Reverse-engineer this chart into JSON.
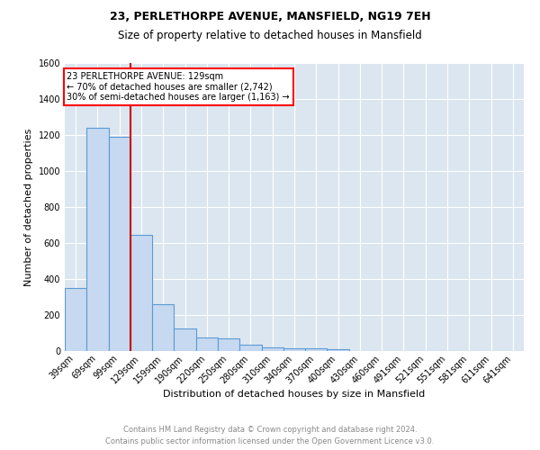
{
  "title": "23, PERLETHORPE AVENUE, MANSFIELD, NG19 7EH",
  "subtitle": "Size of property relative to detached houses in Mansfield",
  "xlabel": "Distribution of detached houses by size in Mansfield",
  "ylabel": "Number of detached properties",
  "footer_line1": "Contains HM Land Registry data © Crown copyright and database right 2024.",
  "footer_line2": "Contains public sector information licensed under the Open Government Licence v3.0.",
  "annotation_line1": "23 PERLETHORPE AVENUE: 129sqm",
  "annotation_line2": "← 70% of detached houses are smaller (2,742)",
  "annotation_line3": "30% of semi-detached houses are larger (1,163) →",
  "bar_color": "#c6d9f0",
  "bar_edge_color": "#5b9bd5",
  "vline_color": "#cc0000",
  "vline_x_index": 3,
  "background_color": "#ffffff",
  "grid_color": "#ffffff",
  "plot_bg_color": "#dce6f1",
  "categories": [
    "39sqm",
    "69sqm",
    "99sqm",
    "129sqm",
    "159sqm",
    "190sqm",
    "220sqm",
    "250sqm",
    "280sqm",
    "310sqm",
    "340sqm",
    "370sqm",
    "400sqm",
    "430sqm",
    "460sqm",
    "491sqm",
    "521sqm",
    "551sqm",
    "581sqm",
    "611sqm",
    "641sqm"
  ],
  "values": [
    350,
    1240,
    1190,
    645,
    260,
    125,
    75,
    70,
    35,
    20,
    15,
    15,
    10,
    0,
    0,
    0,
    0,
    0,
    0,
    0,
    0
  ],
  "ylim": [
    0,
    1600
  ],
  "yticks": [
    0,
    200,
    400,
    600,
    800,
    1000,
    1200,
    1400,
    1600
  ],
  "title_fontsize": 9,
  "subtitle_fontsize": 8.5,
  "ylabel_fontsize": 8,
  "xlabel_fontsize": 8,
  "tick_fontsize": 7,
  "footer_fontsize": 6
}
